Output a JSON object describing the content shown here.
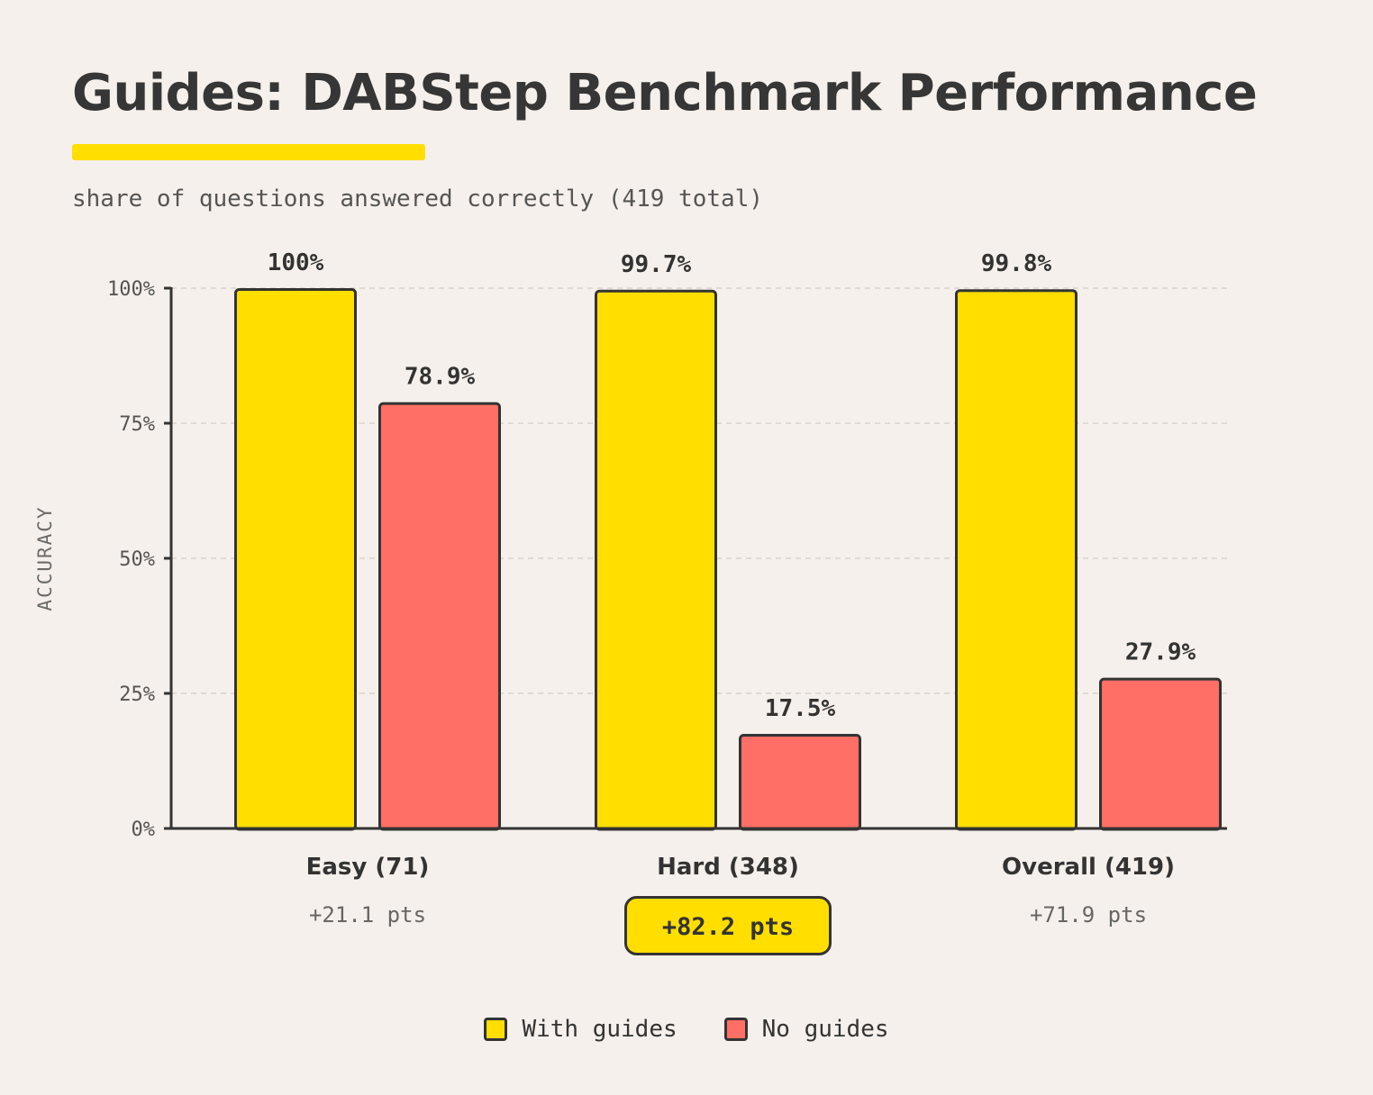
{
  "title": "Guides: DABStep Benchmark Performance",
  "subtitle": "share of questions answered correctly (419 total)",
  "colors": {
    "with_guides": "#ffde00",
    "no_guides": "#ff6f66",
    "outline": "#333333",
    "grid": "#d9d2cb",
    "background": "#f5f0eb"
  },
  "chart_data": {
    "type": "bar",
    "ylabel": "ACCURACY",
    "ylim": [
      0,
      100
    ],
    "yticks": [
      0,
      25,
      50,
      75,
      100
    ],
    "ytick_labels": [
      "0%",
      "25%",
      "50%",
      "75%",
      "100%"
    ],
    "grid": true,
    "legend_position": "bottom-center",
    "categories": [
      "Easy (71)",
      "Hard (348)",
      "Overall (419)"
    ],
    "series": [
      {
        "name": "With guides",
        "values": [
          100,
          99.7,
          99.8
        ],
        "labels": [
          "100%",
          "99.7%",
          "99.8%"
        ]
      },
      {
        "name": "No guides",
        "values": [
          78.9,
          17.5,
          27.9
        ],
        "labels": [
          "78.9%",
          "17.5%",
          "27.9%"
        ]
      }
    ],
    "deltas": [
      "+21.1 pts",
      "+82.2 pts",
      "+71.9 pts"
    ],
    "highlighted_delta": 1
  }
}
